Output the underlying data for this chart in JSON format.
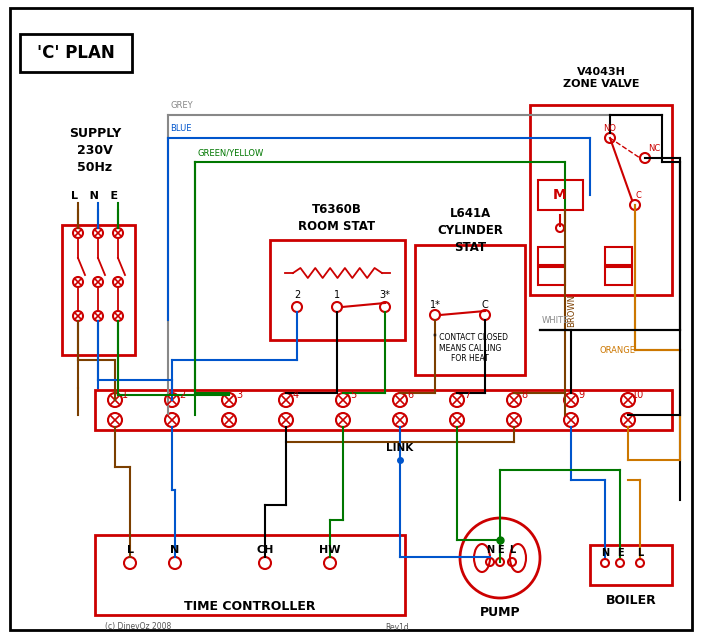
{
  "title": "'C' PLAN",
  "bg_color": "#ffffff",
  "red": "#cc0000",
  "blue": "#0055cc",
  "green": "#007700",
  "grey": "#888888",
  "brown": "#7B3F00",
  "orange": "#cc7700",
  "black": "#000000",
  "text_color": "#000000",
  "label_color": "#333333",
  "supply_text": "SUPPLY\n230V\n50Hz",
  "zone_valve_text": "V4043H\nZONE VALVE",
  "room_stat_text": "T6360B\nROOM STAT",
  "cyl_stat_text": "L641A\nCYLINDER\nSTAT",
  "time_ctrl_text": "TIME CONTROLLER",
  "pump_text": "PUMP",
  "boiler_text": "BOILER",
  "link_text": "LINK",
  "grey_label": "GREY",
  "blue_label": "BLUE",
  "gy_label": "GREEN/YELLOW",
  "brown_label": "BROWN",
  "white_label": "WHITE",
  "orange_label": "ORANGE",
  "copyright": "(c) DinevOz 2008",
  "revision": "Rev1d"
}
